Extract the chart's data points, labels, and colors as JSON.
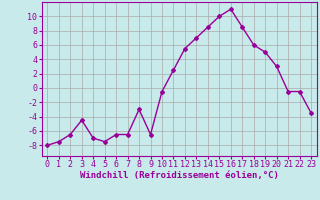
{
  "x": [
    0,
    1,
    2,
    3,
    4,
    5,
    6,
    7,
    8,
    9,
    10,
    11,
    12,
    13,
    14,
    15,
    16,
    17,
    18,
    19,
    20,
    21,
    22,
    23
  ],
  "y": [
    -8,
    -7.5,
    -6.5,
    -4.5,
    -7,
    -7.5,
    -6.5,
    -6.5,
    -3,
    -6.5,
    -0.5,
    2.5,
    5.5,
    7,
    8.5,
    10,
    11,
    8.5,
    6,
    5,
    3,
    -0.5,
    -0.5,
    -3.5
  ],
  "line_color": "#990099",
  "marker": "D",
  "marker_size": 2.0,
  "bg_color": "#c8eaea",
  "grid_color": "#aaaaaa",
  "xlabel": "Windchill (Refroidissement éolien,°C)",
  "xlabel_fontsize": 6.5,
  "ylabel_ticks": [
    -8,
    -6,
    -4,
    -2,
    0,
    2,
    4,
    6,
    8,
    10
  ],
  "xlim": [
    -0.5,
    23.5
  ],
  "ylim": [
    -9.5,
    12
  ],
  "tick_fontsize": 6.0,
  "linewidth": 1.0
}
